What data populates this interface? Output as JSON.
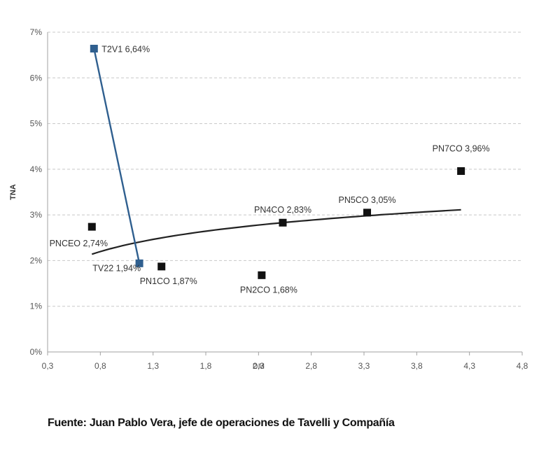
{
  "chart_data": {
    "type": "scatter",
    "xlabel": "DM",
    "ylabel": "TNA",
    "xlim": [
      0.3,
      4.8
    ],
    "ylim": [
      0,
      7
    ],
    "x_ticks": [
      "0,3",
      "0,8",
      "1,3",
      "1,8",
      "2,3",
      "2,8",
      "3,3",
      "3,8",
      "4,3",
      "4,8"
    ],
    "x_tick_values": [
      0.3,
      0.8,
      1.3,
      1.8,
      2.3,
      2.8,
      3.3,
      3.8,
      4.3,
      4.8
    ],
    "y_ticks": [
      "0%",
      "1%",
      "2%",
      "3%",
      "4%",
      "5%",
      "6%",
      "7%"
    ],
    "y_tick_values": [
      0,
      1,
      2,
      3,
      4,
      5,
      6,
      7
    ],
    "grid": "horizontal dashed",
    "series": [
      {
        "name": "",
        "kind": "points",
        "color": "#111111",
        "points": [
          {
            "label": "PNCEO 2,74%",
            "x": 0.72,
            "y": 2.74,
            "label_pos": "below-left"
          },
          {
            "label": "PN1CO 1,87%",
            "x": 1.38,
            "y": 1.87,
            "label_pos": "below"
          },
          {
            "label": "PN2CO 1,68%",
            "x": 2.33,
            "y": 1.68,
            "label_pos": "below"
          },
          {
            "label": "PN4CO 2,83%",
            "x": 2.53,
            "y": 2.83,
            "label_pos": "above"
          },
          {
            "label": "PN5CO 3,05%",
            "x": 3.33,
            "y": 3.05,
            "label_pos": "above"
          },
          {
            "label": "PN7CO 3,96%",
            "x": 4.22,
            "y": 3.96,
            "label_pos": "above-left"
          }
        ]
      },
      {
        "name": "",
        "kind": "line-points",
        "color": "#2f5f8f",
        "points": [
          {
            "label": "T2V1 6,64%",
            "x": 0.74,
            "y": 6.64,
            "label_pos": "right"
          },
          {
            "label": "TV22 1,94%",
            "x": 1.17,
            "y": 1.94,
            "label_pos": "left"
          }
        ]
      }
    ],
    "trendline": {
      "type": "logarithmic",
      "color": "#222222",
      "x_start": 0.72,
      "x_end": 4.22,
      "a": 2.32,
      "b": 0.55
    }
  },
  "source_text": "Fuente: Juan Pablo Vera, jefe de operaciones de Tavelli y Compañía"
}
